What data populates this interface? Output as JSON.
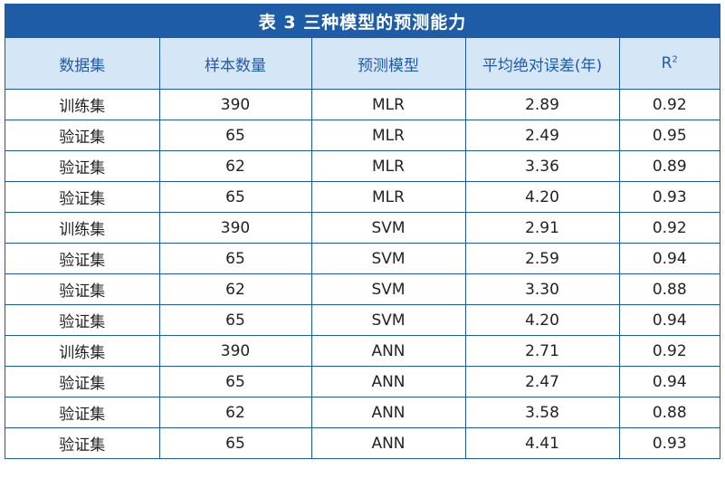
{
  "title": "表 3 三种模型的预测能力",
  "headers": [
    "数据集",
    "样本数量",
    "预测模型",
    "平均绝对误差(年)",
    "R"
  ],
  "r_superscript": "2",
  "rows": [
    [
      "训练集",
      "390",
      "MLR",
      "2.89",
      "0.92"
    ],
    [
      "验证集",
      "65",
      "MLR",
      "2.49",
      "0.95"
    ],
    [
      "验证集",
      "62",
      "MLR",
      "3.36",
      "0.89"
    ],
    [
      "验证集",
      "65",
      "MLR",
      "4.20",
      "0.93"
    ],
    [
      "训练集",
      "390",
      "SVM",
      "2.91",
      "0.92"
    ],
    [
      "验证集",
      "65",
      "SVM",
      "2.59",
      "0.94"
    ],
    [
      "验证集",
      "62",
      "SVM",
      "3.30",
      "0.88"
    ],
    [
      "验证集",
      "65",
      "SVM",
      "4.20",
      "0.94"
    ],
    [
      "训练集",
      "390",
      "ANN",
      "2.71",
      "0.92"
    ],
    [
      "验证集",
      "65",
      "ANN",
      "2.47",
      "0.94"
    ],
    [
      "验证集",
      "62",
      "ANN",
      "3.58",
      "0.88"
    ],
    [
      "验证集",
      "65",
      "ANN",
      "4.41",
      "0.93"
    ]
  ],
  "colors": {
    "title_bg": "#1f5ca8",
    "header_bg": "#d5e6f6",
    "header_text": "#1f5ca8",
    "border": "#1a5aa8"
  }
}
